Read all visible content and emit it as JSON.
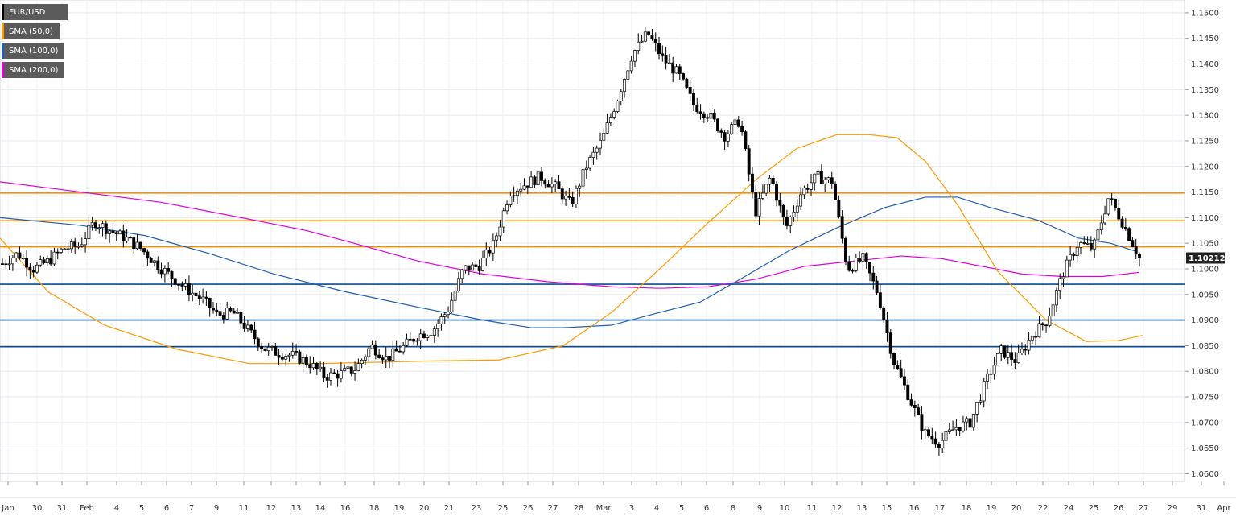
{
  "chart_data": {
    "type": "candlestick",
    "instrument": "EUR/USD",
    "legend": [
      {
        "label": "EUR/USD",
        "color": "#000000"
      },
      {
        "label": "SMA (50,0)",
        "color": "#ff9900"
      },
      {
        "label": "SMA (100,0)",
        "color": "#1f5fb4"
      },
      {
        "label": "SMA (200,0)",
        "color": "#e000e0"
      }
    ],
    "ylim": [
      1.0585,
      1.1525
    ],
    "y_ticks": [
      "1.0600",
      "1.0650",
      "1.0700",
      "1.0750",
      "1.0800",
      "1.0850",
      "1.0900",
      "1.0950",
      "1.1000",
      "1.1050",
      "1.1100",
      "1.1150",
      "1.1200",
      "1.1250",
      "1.1300",
      "1.1350",
      "1.1400",
      "1.1450",
      "1.1500"
    ],
    "x_ticks": [
      "Jan",
      "30",
      "31",
      "Feb",
      "4",
      "5",
      "6",
      "7",
      "9",
      "11",
      "12",
      "13",
      "14",
      "16",
      "18",
      "19",
      "20",
      "21",
      "23",
      "25",
      "26",
      "27",
      "28",
      "Mar",
      "3",
      "4",
      "5",
      "6",
      "8",
      "9",
      "10",
      "11",
      "12",
      "13",
      "15",
      "16",
      "17",
      "18",
      "19",
      "20",
      "22",
      "24",
      "25",
      "26",
      "27",
      "29",
      "31",
      "Apr"
    ],
    "last_price": "1.10212",
    "resistance_levels": [
      1.1148,
      1.1094,
      1.1043
    ],
    "support_levels": [
      1.097,
      1.09,
      1.0848
    ],
    "close_path": [
      [
        0,
        1.101
      ],
      [
        1,
        1.103
      ],
      [
        2,
        1.1
      ],
      [
        3,
        1.1015
      ],
      [
        4,
        1.104
      ],
      [
        5,
        1.1045
      ],
      [
        6,
        1.1092
      ],
      [
        7,
        1.1075
      ],
      [
        8,
        1.106
      ],
      [
        9,
        1.104
      ],
      [
        10,
        1.101
      ],
      [
        11,
        1.0985
      ],
      [
        12,
        1.096
      ],
      [
        13,
        1.094
      ],
      [
        14,
        1.091
      ],
      [
        15,
        1.0915
      ],
      [
        16,
        1.088
      ],
      [
        17,
        1.0845
      ],
      [
        18,
        1.0835
      ],
      [
        19,
        1.083
      ],
      [
        20,
        1.0815
      ],
      [
        21,
        1.079
      ],
      [
        22,
        1.0795
      ],
      [
        23,
        1.0805
      ],
      [
        24,
        1.085
      ],
      [
        25,
        1.0825
      ],
      [
        26,
        1.0845
      ],
      [
        27,
        1.087
      ],
      [
        28,
        1.088
      ],
      [
        29,
        1.092
      ],
      [
        30,
        1.1
      ],
      [
        31,
        1.1005
      ],
      [
        32,
        1.105
      ],
      [
        33,
        1.115
      ],
      [
        34,
        1.1165
      ],
      [
        35,
        1.118
      ],
      [
        36,
        1.116
      ],
      [
        37,
        1.1125
      ],
      [
        38,
        1.12
      ],
      [
        39,
        1.125
      ],
      [
        40,
        1.133
      ],
      [
        41,
        1.142
      ],
      [
        42,
        1.146
      ],
      [
        43,
        1.141
      ],
      [
        44,
        1.138
      ],
      [
        45,
        1.132
      ],
      [
        46,
        1.13
      ],
      [
        47,
        1.126
      ],
      [
        48,
        1.129
      ],
      [
        49,
        1.111
      ],
      [
        50,
        1.118
      ],
      [
        51,
        1.108
      ],
      [
        52,
        1.115
      ],
      [
        53,
        1.118
      ],
      [
        54,
        1.117
      ],
      [
        55,
        1.1
      ],
      [
        56,
        1.102
      ],
      [
        57,
        1.095
      ],
      [
        58,
        1.082
      ],
      [
        59,
        1.075
      ],
      [
        60,
        1.068
      ],
      [
        61,
        1.066
      ],
      [
        62,
        1.069
      ],
      [
        63,
        1.07
      ],
      [
        64,
        1.078
      ],
      [
        65,
        1.084
      ],
      [
        66,
        1.082
      ],
      [
        67,
        1.087
      ],
      [
        68,
        1.09
      ],
      [
        69,
        1.099
      ],
      [
        70,
        1.105
      ],
      [
        71,
        1.104
      ],
      [
        72,
        1.114
      ],
      [
        73,
        1.1085
      ],
      [
        74,
        1.1021
      ]
    ],
    "sma50": [
      [
        0,
        1.106
      ],
      [
        60,
        1.0955
      ],
      [
        130,
        1.089
      ],
      [
        220,
        1.0843
      ],
      [
        310,
        1.0815
      ],
      [
        400,
        1.0815
      ],
      [
        530,
        1.082
      ],
      [
        620,
        1.0822
      ],
      [
        700,
        1.085
      ],
      [
        760,
        1.0915
      ],
      [
        820,
        1.1
      ],
      [
        880,
        1.109
      ],
      [
        940,
        1.1175
      ],
      [
        990,
        1.1235
      ],
      [
        1040,
        1.1262
      ],
      [
        1080,
        1.1262
      ],
      [
        1115,
        1.1256
      ],
      [
        1150,
        1.121
      ],
      [
        1190,
        1.1125
      ],
      [
        1240,
        1.0995
      ],
      [
        1300,
        1.09
      ],
      [
        1350,
        1.0858
      ],
      [
        1390,
        1.086
      ],
      [
        1420,
        1.087
      ]
    ],
    "sma100": [
      [
        0,
        1.11
      ],
      [
        100,
        1.1085
      ],
      [
        180,
        1.1065
      ],
      [
        260,
        1.103
      ],
      [
        340,
        1.099
      ],
      [
        430,
        1.0955
      ],
      [
        520,
        1.0925
      ],
      [
        600,
        1.09
      ],
      [
        660,
        1.0885
      ],
      [
        700,
        1.0885
      ],
      [
        760,
        1.089
      ],
      [
        820,
        1.0915
      ],
      [
        870,
        1.0935
      ],
      [
        920,
        1.098
      ],
      [
        980,
        1.1035
      ],
      [
        1040,
        1.108
      ],
      [
        1100,
        1.112
      ],
      [
        1150,
        1.114
      ],
      [
        1190,
        1.114
      ],
      [
        1230,
        1.112
      ],
      [
        1290,
        1.1095
      ],
      [
        1340,
        1.106
      ],
      [
        1380,
        1.105
      ],
      [
        1410,
        1.1035
      ]
    ],
    "sma200": [
      [
        0,
        1.117
      ],
      [
        100,
        1.115
      ],
      [
        200,
        1.113
      ],
      [
        300,
        1.11
      ],
      [
        380,
        1.1075
      ],
      [
        440,
        1.105
      ],
      [
        520,
        1.1015
      ],
      [
        600,
        1.099
      ],
      [
        680,
        1.0975
      ],
      [
        760,
        1.0965
      ],
      [
        820,
        1.0962
      ],
      [
        880,
        1.0965
      ],
      [
        940,
        1.098
      ],
      [
        1000,
        1.1005
      ],
      [
        1060,
        1.1015
      ],
      [
        1120,
        1.1025
      ],
      [
        1170,
        1.102
      ],
      [
        1220,
        1.1005
      ],
      [
        1270,
        1.099
      ],
      [
        1320,
        1.0985
      ],
      [
        1370,
        1.0985
      ],
      [
        1415,
        1.0993
      ]
    ]
  }
}
